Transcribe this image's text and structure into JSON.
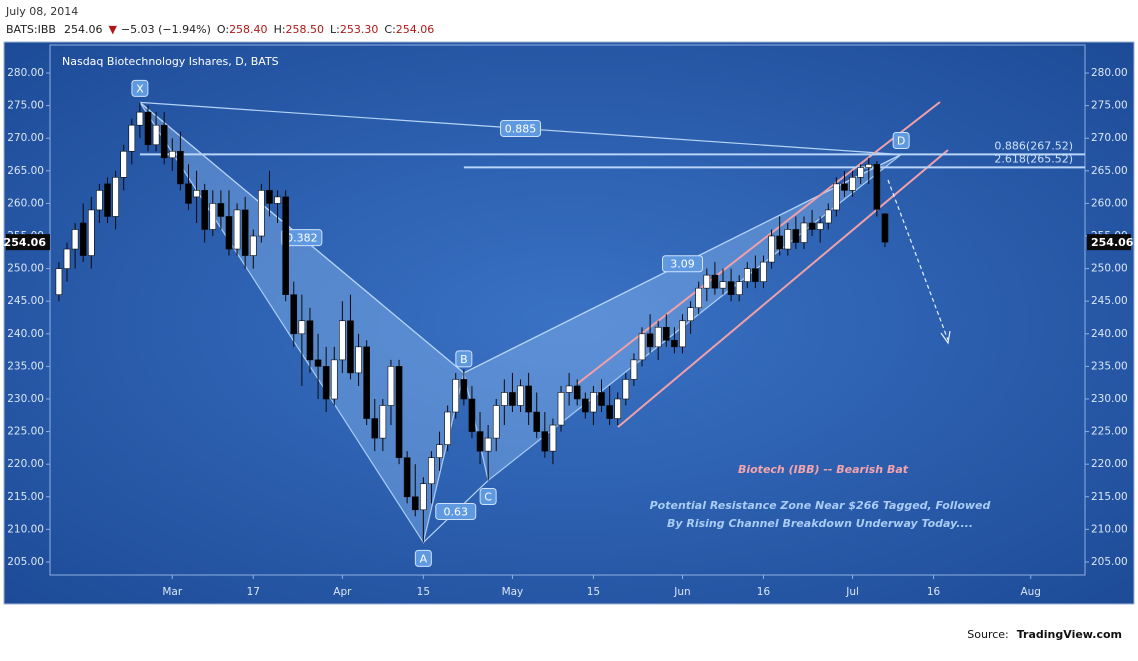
{
  "header": {
    "date": "July 08, 2014",
    "symbol": "BATS:IBB",
    "last": "254.06",
    "arrow": "▼",
    "change": "−5.03 (−1.94%)",
    "ohlc": [
      {
        "label": "O:",
        "value": "258.40"
      },
      {
        "label": "H:",
        "value": "258.50"
      },
      {
        "label": "L:",
        "value": "253.30"
      },
      {
        "label": "C:",
        "value": "254.06"
      }
    ]
  },
  "chart_data": {
    "type": "candlestick",
    "title": "Nasdaq Biotechnology Ishares, D, BATS",
    "x": [
      -14,
      -13,
      -12,
      -11,
      -10,
      -9,
      -8,
      -7,
      -6,
      -5,
      -4,
      -3,
      -2,
      -1,
      0,
      1,
      2,
      3,
      4,
      5,
      6,
      7,
      8,
      9,
      10,
      11,
      12,
      13,
      14,
      15,
      16,
      17,
      18,
      19,
      20,
      21,
      22,
      23,
      24,
      25,
      26,
      27,
      28,
      29,
      30,
      31,
      32,
      33,
      34,
      35,
      36,
      37,
      38,
      39,
      40,
      41,
      42,
      43,
      44,
      45,
      46,
      47,
      48,
      49,
      50,
      51,
      52,
      53,
      54,
      55,
      56,
      57,
      58,
      59,
      60,
      61,
      62,
      63,
      64,
      65,
      66,
      67,
      68,
      69,
      70,
      71,
      72,
      73,
      74,
      75,
      76,
      77,
      78,
      79,
      80,
      81,
      82,
      83,
      84,
      85,
      86,
      87,
      88
    ],
    "open": [
      246,
      250,
      253,
      257,
      252,
      259,
      263,
      258,
      264,
      268,
      272,
      274,
      269,
      272,
      267,
      268,
      263,
      261,
      262,
      256,
      260,
      258,
      253,
      259,
      252,
      255,
      262,
      260,
      261,
      246,
      240,
      242,
      236,
      235,
      230,
      236,
      242,
      234,
      238,
      227,
      224,
      229,
      235,
      221,
      215,
      213,
      217,
      221,
      223,
      228,
      233,
      230,
      225,
      222,
      224,
      229,
      231,
      229,
      232,
      228,
      225,
      222,
      226,
      231,
      232,
      230,
      228,
      231,
      229,
      227,
      230,
      233,
      236,
      240,
      238,
      241,
      239,
      238,
      242,
      244,
      247,
      249,
      247,
      248,
      246,
      248,
      250,
      248,
      251,
      255,
      253,
      256,
      254,
      257,
      256,
      257,
      259,
      263,
      262,
      264,
      265.5,
      266,
      258.4
    ],
    "high": [
      251,
      254,
      257,
      260,
      261,
      263,
      264,
      265,
      269,
      273,
      275.5,
      275,
      274,
      274,
      270,
      271,
      266,
      265,
      263,
      262,
      262,
      262,
      260,
      261,
      256,
      263,
      265,
      262,
      262,
      248,
      246,
      244,
      240,
      238,
      238,
      245,
      246,
      240,
      239,
      230,
      230,
      236,
      236,
      222,
      220,
      218,
      222,
      225,
      229,
      234,
      234.5,
      232,
      228,
      226,
      230,
      233,
      234,
      233,
      234,
      231,
      228,
      227,
      232,
      234,
      233,
      231,
      232,
      233,
      232,
      231,
      234,
      237,
      241,
      243,
      242,
      243,
      241,
      243,
      245,
      248,
      250,
      251,
      250,
      250,
      249,
      251,
      252,
      252,
      256,
      258,
      257,
      258,
      258,
      259,
      258,
      260,
      264,
      265,
      265,
      266,
      267,
      266.5,
      258.5
    ],
    "low": [
      245,
      248,
      250,
      251,
      250,
      257,
      257,
      256,
      262,
      266,
      270,
      268,
      268,
      266,
      265,
      262,
      259,
      257,
      254,
      255,
      256,
      252,
      252,
      250,
      250,
      254,
      258,
      257,
      245,
      238,
      232,
      234,
      230,
      228,
      229,
      234,
      233,
      232,
      226,
      222,
      222,
      226,
      220,
      214,
      212,
      208,
      214,
      219,
      222,
      227,
      229,
      224,
      220,
      217.5,
      222,
      226,
      228,
      228,
      226,
      224,
      221,
      220,
      225,
      229,
      229,
      227,
      226,
      228,
      226,
      226,
      229,
      232,
      235,
      237,
      236,
      238,
      237,
      237,
      240,
      243,
      245,
      246,
      246,
      245,
      245,
      247,
      247,
      247,
      250,
      252,
      252,
      253,
      253,
      255,
      254,
      256,
      258,
      261,
      261,
      263,
      263,
      258,
      253.3
    ],
    "close": [
      250,
      253,
      256,
      252,
      259,
      262,
      258,
      264,
      268,
      272,
      274,
      269,
      272,
      267,
      268,
      263,
      260,
      262,
      256,
      260,
      258,
      253,
      259,
      252,
      255,
      262,
      260,
      261,
      246,
      240,
      242,
      236,
      235,
      230,
      236,
      242,
      234,
      238,
      227,
      224,
      229,
      235,
      221,
      215,
      213,
      217,
      221,
      223,
      228,
      233,
      230,
      225,
      222,
      224,
      229,
      231,
      229,
      232,
      228,
      225,
      222,
      226,
      231,
      232,
      230,
      228,
      231,
      229,
      227,
      230,
      233,
      236,
      240,
      238,
      241,
      239,
      238,
      242,
      244,
      247,
      249,
      247,
      248,
      246,
      248,
      250,
      248,
      251,
      255,
      253,
      256,
      254,
      257,
      256,
      257,
      259,
      263,
      262,
      264,
      265.5,
      266,
      259.09,
      254.06
    ],
    "up_color": "#ffffff",
    "down_color": "#000000",
    "xlim": [
      -15.1,
      112.7
    ],
    "ylim": [
      203,
      284.3
    ],
    "xticks": [
      {
        "value": 0,
        "label": "Mar"
      },
      {
        "value": 10,
        "label": "17"
      },
      {
        "value": 21,
        "label": "Apr"
      },
      {
        "value": 31,
        "label": "15"
      },
      {
        "value": 42,
        "label": "May"
      },
      {
        "value": 52,
        "label": "15"
      },
      {
        "value": 63,
        "label": "Jun"
      },
      {
        "value": 73,
        "label": "16"
      },
      {
        "value": 84,
        "label": "Jul"
      },
      {
        "value": 94,
        "label": "16"
      },
      {
        "value": 106,
        "label": "Aug"
      }
    ],
    "yticks": [
      {
        "value": 205,
        "label": "205.00"
      },
      {
        "value": 210,
        "label": "210.00"
      },
      {
        "value": 215,
        "label": "215.00"
      },
      {
        "value": 220,
        "label": "220.00"
      },
      {
        "value": 225,
        "label": "225.00"
      },
      {
        "value": 230,
        "label": "230.00"
      },
      {
        "value": 235,
        "label": "235.00"
      },
      {
        "value": 240,
        "label": "240.00"
      },
      {
        "value": 245,
        "label": "245.00"
      },
      {
        "value": 250,
        "label": "250.00"
      },
      {
        "value": 255,
        "label": "255.00"
      },
      {
        "value": 260,
        "label": "260.00"
      },
      {
        "value": 265,
        "label": "265.00"
      },
      {
        "value": 270,
        "label": "270.00"
      },
      {
        "value": 275,
        "label": "275.00"
      },
      {
        "value": 280,
        "label": "280.00"
      }
    ],
    "last_price": 254.06,
    "pattern": [
      {
        "label": "X",
        "x": -4,
        "price": 275.5
      },
      {
        "label": "A",
        "x": 31,
        "price": 208
      },
      {
        "label": "B",
        "x": 36,
        "price": 234
      },
      {
        "label": "C",
        "x": 39,
        "price": 217.5
      },
      {
        "label": "D",
        "x": 90,
        "price": 267.5
      }
    ],
    "ratios": [
      0.885,
      0.382,
      0.63,
      3.09
    ],
    "levels": [
      {
        "value": 267.52,
        "label": "0.886(267.52)"
      },
      {
        "value": 265.52,
        "label": "2.618(265.52)"
      }
    ],
    "annotation_title": "Biotech (IBB) -- Bearish Bat",
    "annotation_lines": [
      "Potential Resistance Zone Near $266 Tagged, Followed",
      "By Rising Channel Breakdown Underway Today...."
    ]
  },
  "footer": {
    "source_label": "Source:",
    "source": "TradingView.com"
  }
}
